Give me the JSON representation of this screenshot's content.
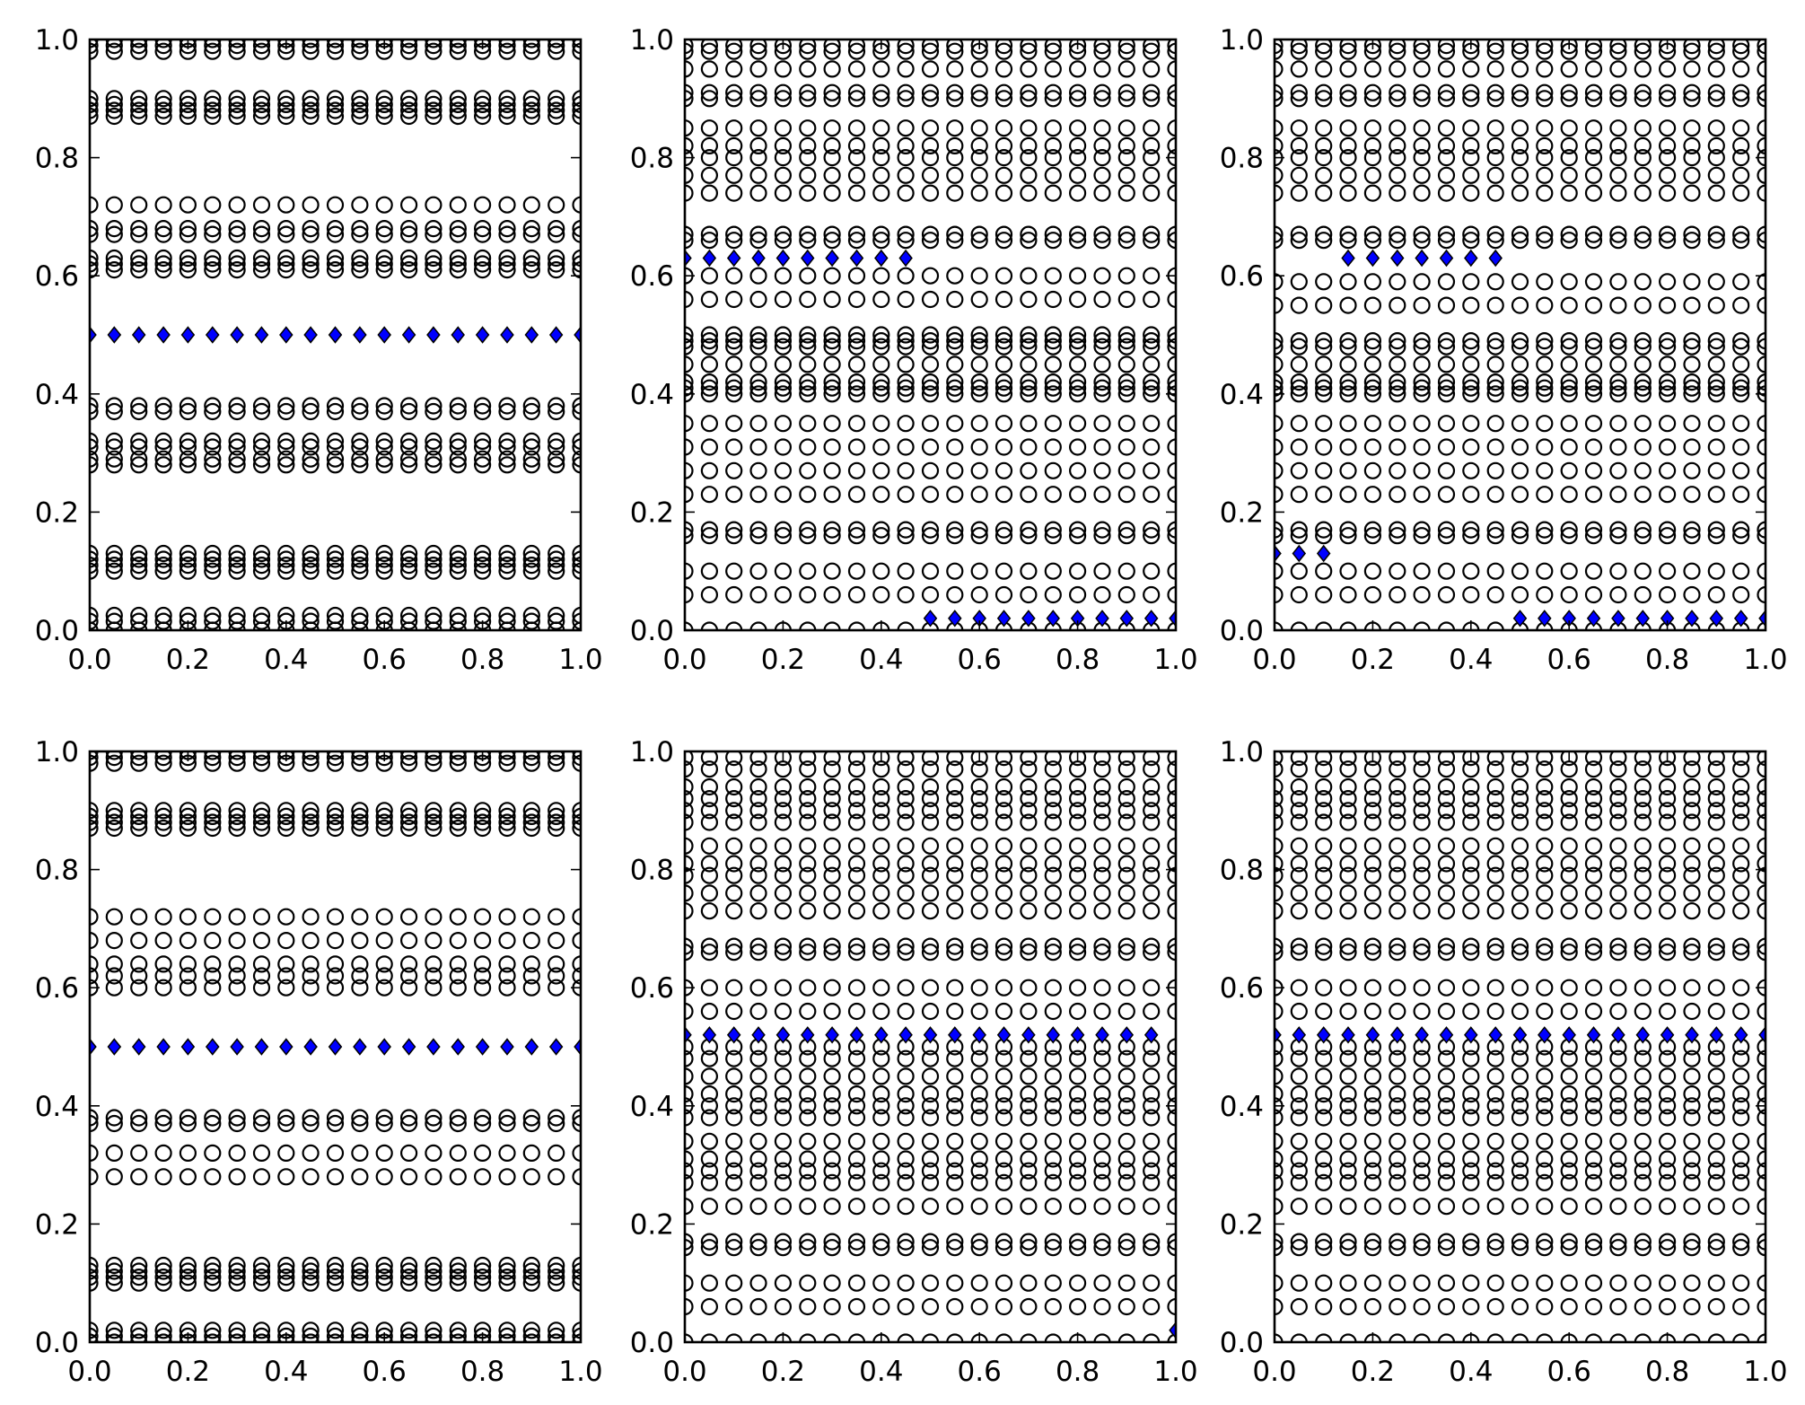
{
  "figure": {
    "background": "#ffffff"
  },
  "chart_data": [
    {
      "type": "scatter",
      "title": "",
      "xlabel": "",
      "ylabel": "",
      "xlim": [
        0,
        1
      ],
      "ylim": [
        0,
        1
      ],
      "xticks": [
        "0.0",
        "0.2",
        "0.4",
        "0.6",
        "0.8",
        "1.0"
      ],
      "yticks": [
        "0.0",
        "0.2",
        "0.4",
        "0.6",
        "0.8",
        "1.0"
      ],
      "grid": false,
      "legend": "none",
      "series": [
        {
          "marker": "open-circle",
          "color": "#000000",
          "x_start": 0,
          "x_step": 0.05,
          "count": 21,
          "y_rows": [
            0.0,
            0.015,
            0.025,
            0.1,
            0.11,
            0.12,
            0.13,
            0.28,
            0.29,
            0.31,
            0.32,
            0.37,
            0.38,
            0.61,
            0.62,
            0.63,
            0.67,
            0.68,
            0.72,
            0.87,
            0.88,
            0.89,
            0.9,
            0.98,
            0.99,
            1.0
          ]
        },
        {
          "marker": "filled-diamond",
          "color": "#0000ff",
          "edge": "#000000",
          "points": [
            [
              0.0,
              0.5
            ],
            [
              0.05,
              0.5
            ],
            [
              0.1,
              0.5
            ],
            [
              0.15,
              0.5
            ],
            [
              0.2,
              0.5
            ],
            [
              0.25,
              0.5
            ],
            [
              0.3,
              0.5
            ],
            [
              0.35,
              0.5
            ],
            [
              0.4,
              0.5
            ],
            [
              0.45,
              0.5
            ],
            [
              0.5,
              0.5
            ],
            [
              0.55,
              0.5
            ],
            [
              0.6,
              0.5
            ],
            [
              0.65,
              0.5
            ],
            [
              0.7,
              0.5
            ],
            [
              0.75,
              0.5
            ],
            [
              0.8,
              0.5
            ],
            [
              0.85,
              0.5
            ],
            [
              0.9,
              0.5
            ],
            [
              0.95,
              0.5
            ],
            [
              1.0,
              0.5
            ]
          ]
        }
      ]
    },
    {
      "type": "scatter",
      "title": "",
      "xlabel": "",
      "ylabel": "",
      "xlim": [
        0,
        1
      ],
      "ylim": [
        0,
        1
      ],
      "xticks": [
        "0.0",
        "0.2",
        "0.4",
        "0.6",
        "0.8",
        "1.0"
      ],
      "yticks": [
        "0.0",
        "0.2",
        "0.4",
        "0.6",
        "0.8",
        "1.0"
      ],
      "grid": false,
      "legend": "none",
      "series": [
        {
          "marker": "open-circle",
          "color": "#000000",
          "x_start": 0,
          "x_step": 0.05,
          "count": 21,
          "y_rows": [
            0.0,
            0.06,
            0.1,
            0.16,
            0.17,
            0.23,
            0.27,
            0.31,
            0.35,
            0.4,
            0.41,
            0.42,
            0.45,
            0.48,
            0.49,
            0.5,
            0.56,
            0.6,
            0.66,
            0.67,
            0.74,
            0.77,
            0.8,
            0.82,
            0.85,
            0.9,
            0.91,
            0.95,
            0.98,
            0.99
          ]
        },
        {
          "marker": "filled-diamond",
          "color": "#0000ff",
          "edge": "#000000",
          "points": [
            [
              0.0,
              0.63
            ],
            [
              0.05,
              0.63
            ],
            [
              0.1,
              0.63
            ],
            [
              0.15,
              0.63
            ],
            [
              0.2,
              0.63
            ],
            [
              0.25,
              0.63
            ],
            [
              0.3,
              0.63
            ],
            [
              0.35,
              0.63
            ],
            [
              0.4,
              0.63
            ],
            [
              0.45,
              0.63
            ],
            [
              0.5,
              0.02
            ],
            [
              0.55,
              0.02
            ],
            [
              0.6,
              0.02
            ],
            [
              0.65,
              0.02
            ],
            [
              0.7,
              0.02
            ],
            [
              0.75,
              0.02
            ],
            [
              0.8,
              0.02
            ],
            [
              0.85,
              0.02
            ],
            [
              0.9,
              0.02
            ],
            [
              0.95,
              0.02
            ],
            [
              1.0,
              0.02
            ]
          ]
        }
      ]
    },
    {
      "type": "scatter",
      "title": "",
      "xlabel": "",
      "ylabel": "",
      "xlim": [
        0,
        1
      ],
      "ylim": [
        0,
        1
      ],
      "xticks": [
        "0.0",
        "0.2",
        "0.4",
        "0.6",
        "0.8",
        "1.0"
      ],
      "yticks": [
        "0.0",
        "0.2",
        "0.4",
        "0.6",
        "0.8",
        "1.0"
      ],
      "grid": false,
      "legend": "none",
      "series": [
        {
          "marker": "open-circle",
          "color": "#000000",
          "x_start": 0,
          "x_step": 0.05,
          "count": 21,
          "y_rows": [
            0.0,
            0.06,
            0.1,
            0.16,
            0.17,
            0.23,
            0.27,
            0.31,
            0.35,
            0.4,
            0.41,
            0.42,
            0.45,
            0.48,
            0.49,
            0.55,
            0.59,
            0.66,
            0.67,
            0.74,
            0.77,
            0.8,
            0.82,
            0.85,
            0.9,
            0.91,
            0.95,
            0.98,
            0.99
          ]
        },
        {
          "marker": "filled-diamond",
          "color": "#0000ff",
          "edge": "#000000",
          "points": [
            [
              0.0,
              0.13
            ],
            [
              0.05,
              0.13
            ],
            [
              0.1,
              0.13
            ],
            [
              0.15,
              0.63
            ],
            [
              0.2,
              0.63
            ],
            [
              0.25,
              0.63
            ],
            [
              0.3,
              0.63
            ],
            [
              0.35,
              0.63
            ],
            [
              0.4,
              0.63
            ],
            [
              0.45,
              0.63
            ],
            [
              0.5,
              0.02
            ],
            [
              0.55,
              0.02
            ],
            [
              0.6,
              0.02
            ],
            [
              0.65,
              0.02
            ],
            [
              0.7,
              0.02
            ],
            [
              0.75,
              0.02
            ],
            [
              0.8,
              0.02
            ],
            [
              0.85,
              0.02
            ],
            [
              0.9,
              0.02
            ],
            [
              0.95,
              0.02
            ],
            [
              1.0,
              0.02
            ]
          ]
        }
      ]
    },
    {
      "type": "scatter",
      "title": "",
      "xlabel": "",
      "ylabel": "",
      "xlim": [
        0,
        1
      ],
      "ylim": [
        0,
        1
      ],
      "xticks": [
        "0.0",
        "0.2",
        "0.4",
        "0.6",
        "0.8",
        "1.0"
      ],
      "yticks": [
        "0.0",
        "0.2",
        "0.4",
        "0.6",
        "0.8",
        "1.0"
      ],
      "grid": false,
      "legend": "none",
      "series": [
        {
          "marker": "open-circle",
          "color": "#000000",
          "x_start": 0,
          "x_step": 0.05,
          "count": 21,
          "y_rows": [
            0.0,
            0.01,
            0.02,
            0.1,
            0.11,
            0.12,
            0.13,
            0.28,
            0.32,
            0.37,
            0.38,
            0.6,
            0.62,
            0.64,
            0.68,
            0.72,
            0.87,
            0.88,
            0.89,
            0.9,
            0.98,
            0.99,
            1.0
          ]
        },
        {
          "marker": "filled-diamond",
          "color": "#0000ff",
          "edge": "#000000",
          "points": [
            [
              0.0,
              0.5
            ],
            [
              0.05,
              0.5
            ],
            [
              0.1,
              0.5
            ],
            [
              0.15,
              0.5
            ],
            [
              0.2,
              0.5
            ],
            [
              0.25,
              0.5
            ],
            [
              0.3,
              0.5
            ],
            [
              0.35,
              0.5
            ],
            [
              0.4,
              0.5
            ],
            [
              0.45,
              0.5
            ],
            [
              0.5,
              0.5
            ],
            [
              0.55,
              0.5
            ],
            [
              0.6,
              0.5
            ],
            [
              0.65,
              0.5
            ],
            [
              0.7,
              0.5
            ],
            [
              0.75,
              0.5
            ],
            [
              0.8,
              0.5
            ],
            [
              0.85,
              0.5
            ],
            [
              0.9,
              0.5
            ],
            [
              0.95,
              0.5
            ],
            [
              1.0,
              0.5
            ]
          ]
        }
      ]
    },
    {
      "type": "scatter",
      "title": "",
      "xlabel": "",
      "ylabel": "",
      "xlim": [
        0,
        1
      ],
      "ylim": [
        0,
        1
      ],
      "xticks": [
        "0.0",
        "0.2",
        "0.4",
        "0.6",
        "0.8",
        "1.0"
      ],
      "yticks": [
        "0.0",
        "0.2",
        "0.4",
        "0.6",
        "0.8",
        "1.0"
      ],
      "grid": false,
      "legend": "none",
      "series": [
        {
          "marker": "open-circle",
          "color": "#000000",
          "x_start": 0,
          "x_step": 0.05,
          "count": 21,
          "y_rows": [
            0.0,
            0.06,
            0.1,
            0.16,
            0.17,
            0.23,
            0.27,
            0.29,
            0.31,
            0.34,
            0.38,
            0.4,
            0.42,
            0.45,
            0.48,
            0.5,
            0.56,
            0.6,
            0.66,
            0.67,
            0.73,
            0.76,
            0.79,
            0.81,
            0.84,
            0.88,
            0.9,
            0.92,
            0.94,
            0.97,
            0.99
          ]
        },
        {
          "marker": "filled-diamond",
          "color": "#0000ff",
          "edge": "#000000",
          "points": [
            [
              0.0,
              0.52
            ],
            [
              0.05,
              0.52
            ],
            [
              0.1,
              0.52
            ],
            [
              0.15,
              0.52
            ],
            [
              0.2,
              0.52
            ],
            [
              0.25,
              0.52
            ],
            [
              0.3,
              0.52
            ],
            [
              0.35,
              0.52
            ],
            [
              0.4,
              0.52
            ],
            [
              0.45,
              0.52
            ],
            [
              0.5,
              0.52
            ],
            [
              0.55,
              0.52
            ],
            [
              0.6,
              0.52
            ],
            [
              0.65,
              0.52
            ],
            [
              0.7,
              0.52
            ],
            [
              0.75,
              0.52
            ],
            [
              0.8,
              0.52
            ],
            [
              0.85,
              0.52
            ],
            [
              0.9,
              0.52
            ],
            [
              0.95,
              0.52
            ],
            [
              1.0,
              0.02
            ]
          ]
        }
      ]
    },
    {
      "type": "scatter",
      "title": "",
      "xlabel": "",
      "ylabel": "",
      "xlim": [
        0,
        1
      ],
      "ylim": [
        0,
        1
      ],
      "xticks": [
        "0.0",
        "0.2",
        "0.4",
        "0.6",
        "0.8",
        "1.0"
      ],
      "yticks": [
        "0.0",
        "0.2",
        "0.4",
        "0.6",
        "0.8",
        "1.0"
      ],
      "grid": false,
      "legend": "none",
      "series": [
        {
          "marker": "open-circle",
          "color": "#000000",
          "x_start": 0,
          "x_step": 0.05,
          "count": 21,
          "y_rows": [
            0.0,
            0.06,
            0.1,
            0.16,
            0.17,
            0.23,
            0.27,
            0.29,
            0.31,
            0.34,
            0.38,
            0.4,
            0.42,
            0.45,
            0.48,
            0.5,
            0.56,
            0.6,
            0.66,
            0.67,
            0.73,
            0.76,
            0.79,
            0.81,
            0.84,
            0.88,
            0.9,
            0.92,
            0.94,
            0.97,
            0.99
          ]
        },
        {
          "marker": "filled-diamond",
          "color": "#0000ff",
          "edge": "#000000",
          "points": [
            [
              0.0,
              0.52
            ],
            [
              0.05,
              0.52
            ],
            [
              0.1,
              0.52
            ],
            [
              0.15,
              0.52
            ],
            [
              0.2,
              0.52
            ],
            [
              0.25,
              0.52
            ],
            [
              0.3,
              0.52
            ],
            [
              0.35,
              0.52
            ],
            [
              0.4,
              0.52
            ],
            [
              0.45,
              0.52
            ],
            [
              0.5,
              0.52
            ],
            [
              0.55,
              0.52
            ],
            [
              0.6,
              0.52
            ],
            [
              0.65,
              0.52
            ],
            [
              0.7,
              0.52
            ],
            [
              0.75,
              0.52
            ],
            [
              0.8,
              0.52
            ],
            [
              0.85,
              0.52
            ],
            [
              0.9,
              0.52
            ],
            [
              0.95,
              0.52
            ],
            [
              1.0,
              0.52
            ]
          ]
        }
      ]
    }
  ]
}
